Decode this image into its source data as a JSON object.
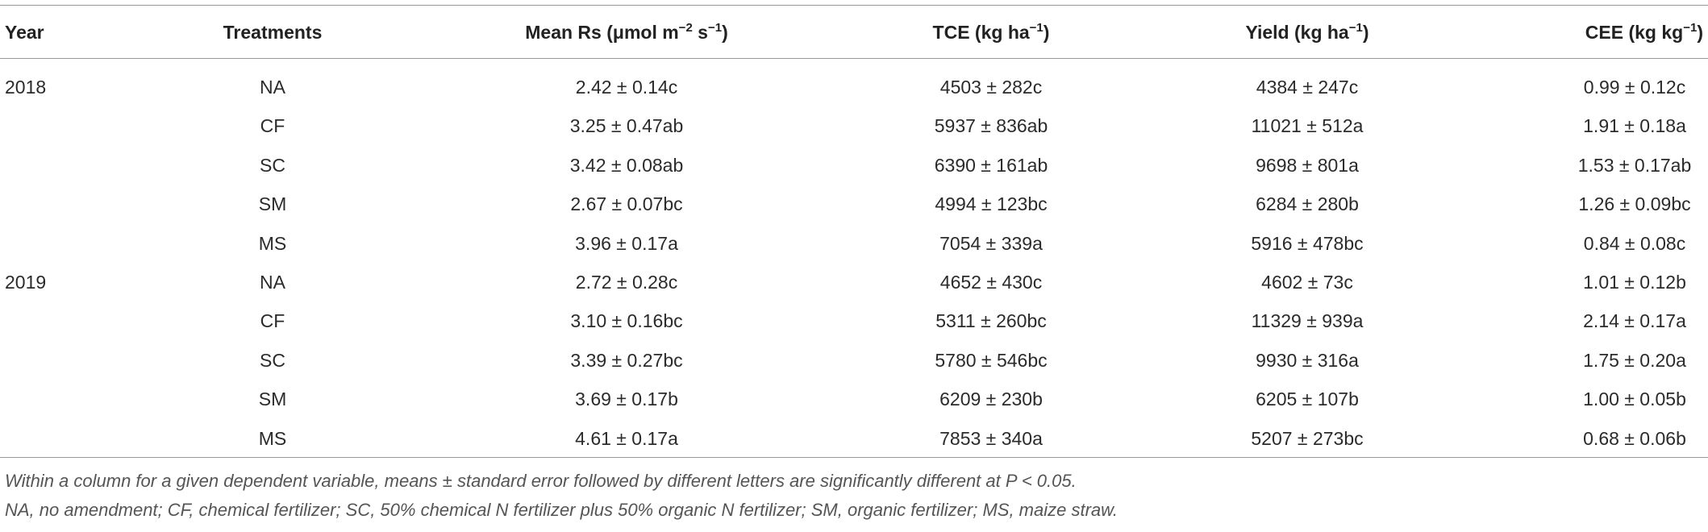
{
  "table": {
    "header": [
      [
        {
          "t": "Year"
        }
      ],
      [
        {
          "t": "Treatments"
        }
      ],
      [
        {
          "t": "Mean Rs (μmol m"
        },
        {
          "sup": "−2"
        },
        {
          "t": " s"
        },
        {
          "sup": "−1"
        },
        {
          "t": ")"
        }
      ],
      [
        {
          "t": "TCE (kg ha"
        },
        {
          "sup": "−1"
        },
        {
          "t": ")"
        }
      ],
      [
        {
          "t": "Yield (kg ha"
        },
        {
          "sup": "−1"
        },
        {
          "t": ")"
        }
      ],
      [
        {
          "t": "CEE (kg kg"
        },
        {
          "sup": "−1"
        },
        {
          "t": ")"
        }
      ]
    ],
    "groups": [
      {
        "year": "2018",
        "rows": [
          [
            "NA",
            "2.42 ± 0.14c",
            "4503 ± 282c",
            "4384 ± 247c",
            "0.99 ± 0.12c"
          ],
          [
            "CF",
            "3.25 ± 0.47ab",
            "5937 ± 836ab",
            "11021 ± 512a",
            "1.91 ± 0.18a"
          ],
          [
            "SC",
            "3.42 ± 0.08ab",
            "6390 ± 161ab",
            "9698 ± 801a",
            "1.53 ± 0.17ab"
          ],
          [
            "SM",
            "2.67 ± 0.07bc",
            "4994 ± 123bc",
            "6284 ± 280b",
            "1.26 ± 0.09bc"
          ],
          [
            "MS",
            "3.96 ± 0.17a",
            "7054 ± 339a",
            "5916 ± 478bc",
            "0.84 ± 0.08c"
          ]
        ]
      },
      {
        "year": "2019",
        "rows": [
          [
            "NA",
            "2.72 ± 0.28c",
            "4652 ± 430c",
            "4602 ± 73c",
            "1.01 ± 0.12b"
          ],
          [
            "CF",
            "3.10 ± 0.16bc",
            "5311 ± 260bc",
            "11329 ± 939a",
            "2.14 ± 0.17a"
          ],
          [
            "SC",
            "3.39 ± 0.27bc",
            "5780 ± 546bc",
            "9930 ± 316a",
            "1.75 ± 0.20a"
          ],
          [
            "SM",
            "3.69 ± 0.17b",
            "6209 ± 230b",
            "6205 ± 107b",
            "1.00 ± 0.05b"
          ],
          [
            "MS",
            "4.61 ± 0.17a",
            "7853 ± 340a",
            "5207 ± 273bc",
            "0.68 ± 0.06b"
          ]
        ]
      }
    ],
    "footnotes": [
      "Within a column for a given dependent variable, means ± standard error followed by different letters are significantly different at P < 0.05.",
      "NA, no amendment; CF, chemical fertilizer; SC, 50% chemical N fertilizer plus 50% organic N fertilizer; SM, organic fertilizer; MS, maize straw."
    ]
  }
}
